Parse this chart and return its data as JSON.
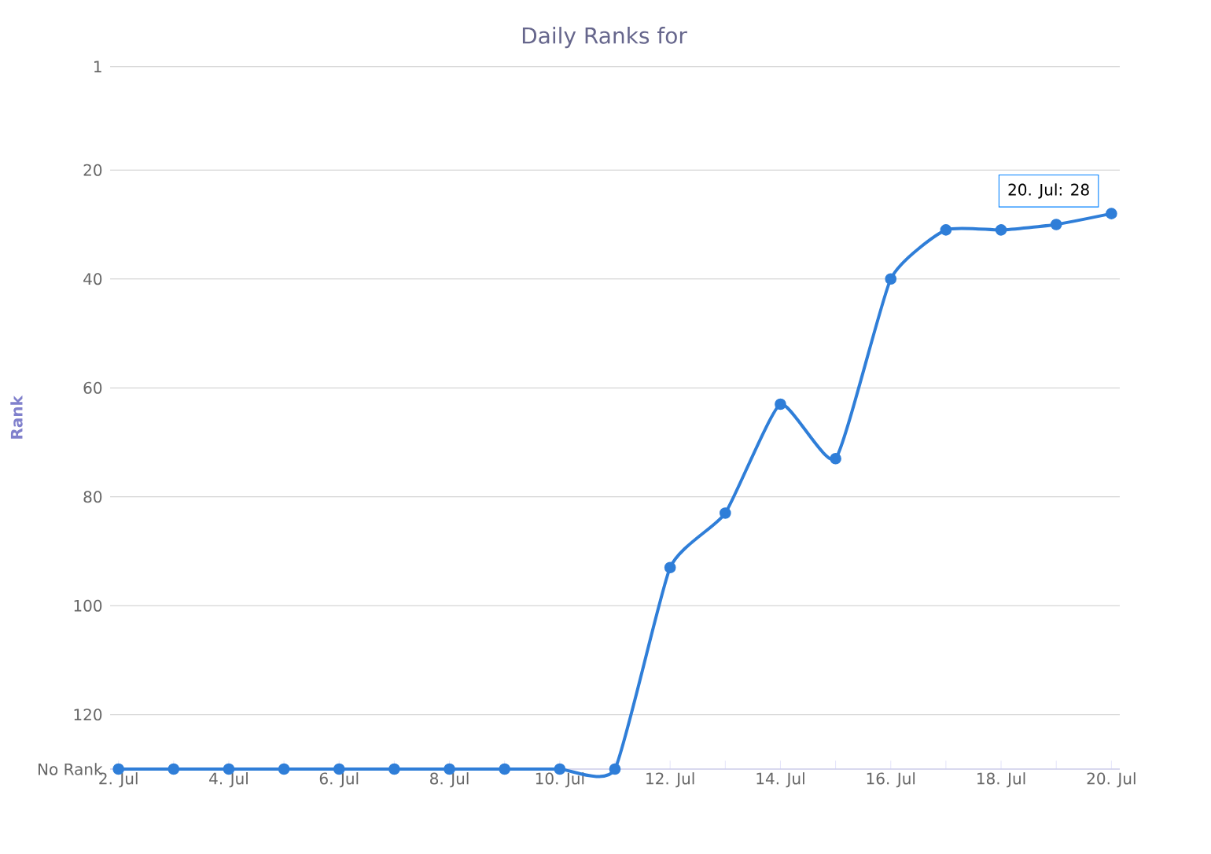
{
  "chart_data": {
    "type": "line",
    "title": "Daily Ranks for",
    "ylabel": "Rank",
    "categories": [
      "2. Jul",
      null,
      "4. Jul",
      null,
      "6. Jul",
      null,
      "8. Jul",
      null,
      "10. Jul",
      null,
      "12. Jul",
      null,
      "14. Jul",
      null,
      "16. Jul",
      null,
      "18. Jul",
      null,
      "20. Jul"
    ],
    "series": [
      {
        "color": "#2f7ed8",
        "values": [
          130,
          130,
          130,
          130,
          130,
          130,
          130,
          130,
          130,
          130,
          93,
          83,
          63,
          73,
          40,
          31,
          31,
          30,
          28
        ]
      }
    ],
    "ylim": [
      130,
      1
    ],
    "yticks": [
      1,
      20,
      40,
      60,
      80,
      100,
      120,
      {
        "value": 130,
        "label": "No Rank"
      }
    ],
    "grid": "y",
    "marker": "circle",
    "line_style": "solid",
    "annotations": [
      {
        "text": "20. Jul: 28",
        "x": "20. Jul",
        "y": 28
      }
    ]
  }
}
